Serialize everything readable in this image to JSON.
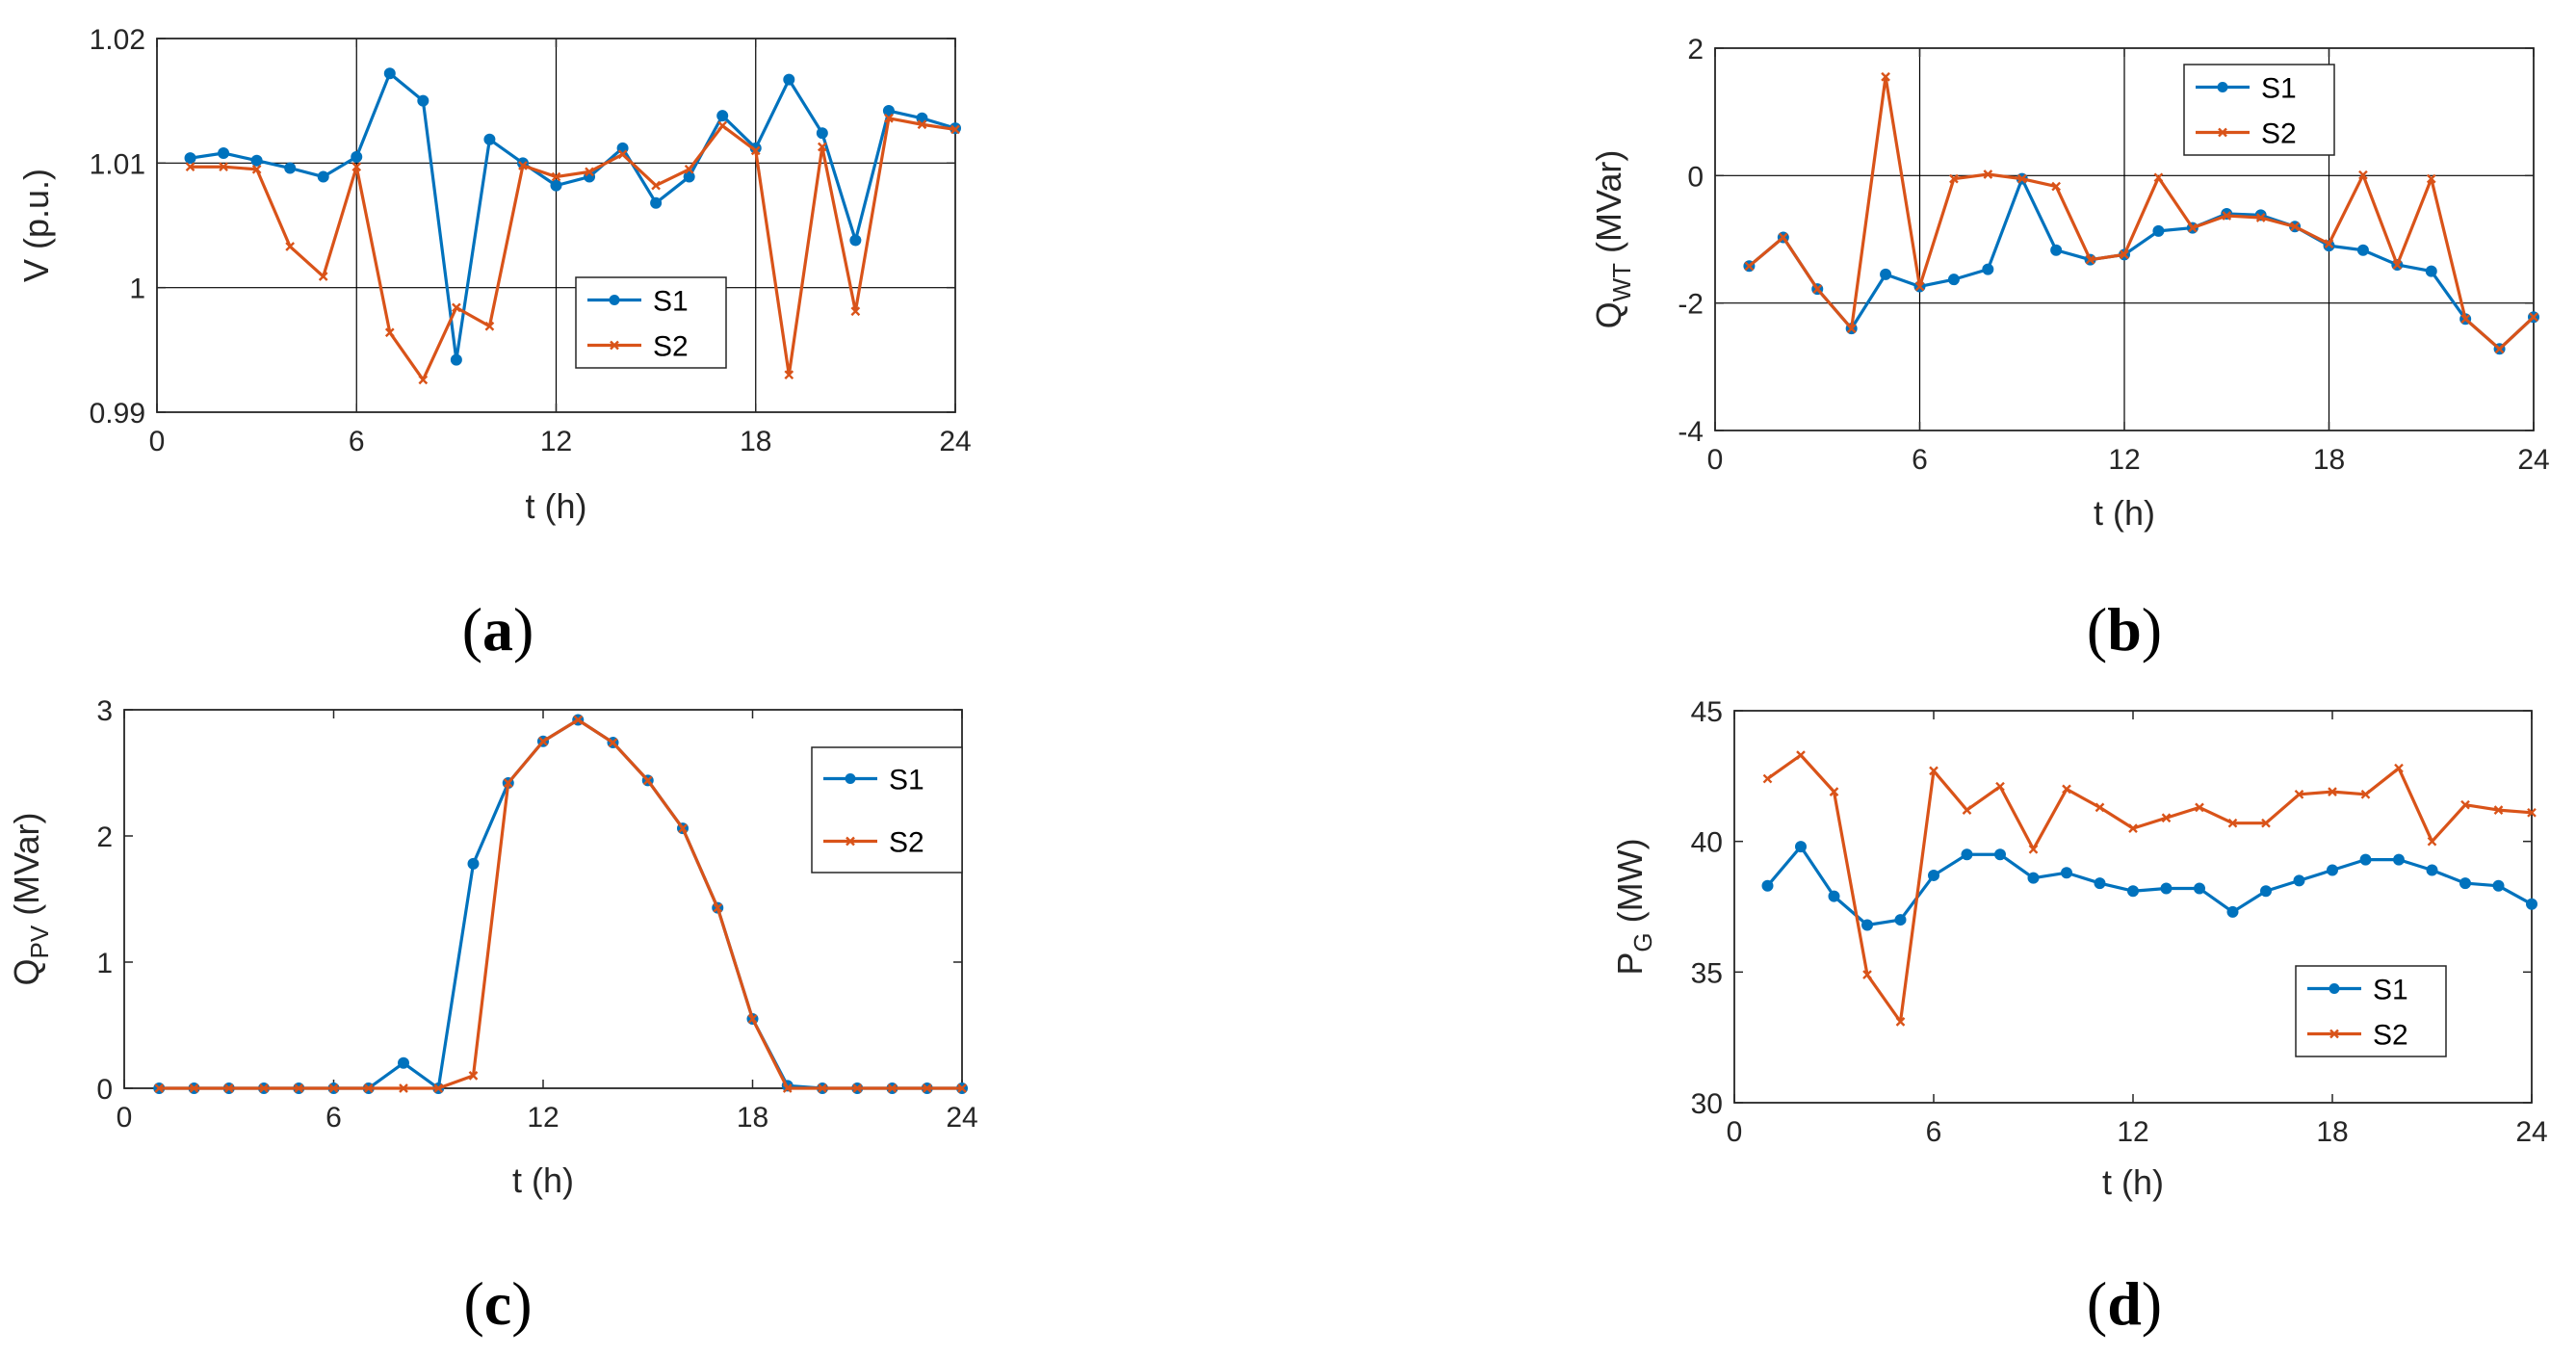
{
  "chart_data": [
    {
      "panel": "(a)",
      "panel_letter": "a",
      "type": "line",
      "xlabel": "t (h)",
      "ylabel": "V (p.u.)",
      "xlim": [
        0,
        24
      ],
      "ylim": [
        0.99,
        1.02
      ],
      "xticks": [
        0,
        6,
        12,
        18,
        24
      ],
      "yticks": [
        0.99,
        1,
        1.01,
        1.02
      ],
      "ytick_labels": [
        "0.99",
        "1",
        "1.01",
        "1.02"
      ],
      "grid": "major lines at x=6,12,18 and y=1,1.01",
      "legend_position": "center",
      "x": [
        1,
        2,
        3,
        4,
        5,
        6,
        7,
        8,
        9,
        10,
        11,
        12,
        13,
        14,
        15,
        16,
        17,
        18,
        19,
        20,
        21,
        22,
        23,
        24
      ],
      "series": [
        {
          "name": "S1",
          "color": "#0072BD",
          "marker": "circle",
          "values": [
            1.0104,
            1.0108,
            1.0102,
            1.0096,
            1.0089,
            1.0105,
            1.0172,
            1.015,
            0.9942,
            1.0119,
            1.01,
            1.0082,
            1.0089,
            1.0112,
            1.0068,
            1.0089,
            1.0138,
            1.0112,
            1.0167,
            1.0124,
            1.0038,
            1.0142,
            1.0136,
            1.0128
          ]
        },
        {
          "name": "S2",
          "color": "#D95319",
          "marker": "x",
          "values": [
            1.0097,
            1.0097,
            1.0095,
            1.0033,
            1.0009,
            1.0097,
            0.9964,
            0.9926,
            0.9984,
            0.9969,
            1.0098,
            1.0089,
            1.0093,
            1.0107,
            1.0082,
            1.0095,
            1.013,
            1.011,
            0.993,
            1.0113,
            0.9981,
            1.0136,
            1.0131,
            1.0127
          ]
        }
      ]
    },
    {
      "panel": "(b)",
      "panel_letter": "b",
      "type": "line",
      "xlabel": "t (h)",
      "ylabel": "Q",
      "ylabel_sub": "WT",
      "ylabel_unit": " (MVar)",
      "xlim": [
        0,
        24
      ],
      "ylim": [
        -4,
        2
      ],
      "xticks": [
        0,
        6,
        12,
        18,
        24
      ],
      "yticks": [
        -4,
        -2,
        0,
        2
      ],
      "ytick_labels": [
        "-4",
        "-2",
        "0",
        "2"
      ],
      "grid": "major lines at x=6,12,18 and y=-2,0",
      "legend_position": "top",
      "x": [
        1,
        2,
        3,
        4,
        5,
        6,
        7,
        8,
        9,
        10,
        11,
        12,
        13,
        14,
        15,
        16,
        17,
        18,
        19,
        20,
        21,
        22,
        23,
        24
      ],
      "series": [
        {
          "name": "S1",
          "color": "#0072BD",
          "marker": "circle",
          "values": [
            -1.42,
            -0.97,
            -1.78,
            -2.4,
            -1.55,
            -1.74,
            -1.63,
            -1.47,
            -0.05,
            -1.17,
            -1.32,
            -1.24,
            -0.87,
            -0.82,
            -0.6,
            -0.62,
            -0.8,
            -1.1,
            -1.17,
            -1.4,
            -1.5,
            -2.25,
            -2.72,
            -2.22
          ]
        },
        {
          "name": "S2",
          "color": "#D95319",
          "marker": "x",
          "values": [
            -1.42,
            -0.97,
            -1.78,
            -2.4,
            1.55,
            -1.74,
            -0.05,
            0.02,
            -0.05,
            -0.17,
            -1.32,
            -1.24,
            -0.03,
            -0.82,
            -0.63,
            -0.66,
            -0.8,
            -1.07,
            0.01,
            -1.4,
            -0.05,
            -2.25,
            -2.72,
            -2.22
          ]
        }
      ]
    },
    {
      "panel": "(c)",
      "panel_letter": "c",
      "type": "line",
      "xlabel": "t (h)",
      "ylabel": "Q",
      "ylabel_sub": "PV",
      "ylabel_unit": " (MVar)",
      "xlim": [
        0,
        24
      ],
      "ylim": [
        0,
        3
      ],
      "xticks": [
        0,
        6,
        12,
        18,
        24
      ],
      "yticks": [
        0,
        1,
        2,
        3
      ],
      "ytick_labels": [
        "0",
        "1",
        "2",
        "3"
      ],
      "grid": "off",
      "legend_position": "top-right",
      "x": [
        1,
        2,
        3,
        4,
        5,
        6,
        7,
        8,
        9,
        10,
        11,
        12,
        13,
        14,
        15,
        16,
        17,
        18,
        19,
        20,
        21,
        22,
        23,
        24
      ],
      "series": [
        {
          "name": "S1",
          "color": "#0072BD",
          "marker": "circle",
          "values": [
            0,
            0,
            0,
            0,
            0,
            0,
            0,
            0.2,
            0,
            1.78,
            2.42,
            2.75,
            2.92,
            2.74,
            2.44,
            2.06,
            1.43,
            0.55,
            0.02,
            0,
            0,
            0,
            0,
            0
          ]
        },
        {
          "name": "S2",
          "color": "#D95319",
          "marker": "x",
          "values": [
            0,
            0,
            0,
            0,
            0,
            0,
            0,
            0,
            0,
            0.1,
            2.42,
            2.75,
            2.92,
            2.74,
            2.44,
            2.06,
            1.43,
            0.55,
            0,
            0,
            0,
            0,
            0,
            0
          ]
        }
      ]
    },
    {
      "panel": "(d)",
      "panel_letter": "d",
      "type": "line",
      "xlabel": "t (h)",
      "ylabel": "P",
      "ylabel_sub": "G",
      "ylabel_unit": " (MW)",
      "xlim": [
        0,
        24
      ],
      "ylim": [
        30,
        45
      ],
      "xticks": [
        0,
        6,
        12,
        18,
        24
      ],
      "yticks": [
        30,
        35,
        40,
        45
      ],
      "ytick_labels": [
        "30",
        "35",
        "40",
        "45"
      ],
      "grid": "off",
      "legend_position": "bottom-right",
      "x": [
        1,
        2,
        3,
        4,
        5,
        6,
        7,
        8,
        9,
        10,
        11,
        12,
        13,
        14,
        15,
        16,
        17,
        18,
        19,
        20,
        21,
        22,
        23,
        24
      ],
      "series": [
        {
          "name": "S1",
          "color": "#0072BD",
          "marker": "circle",
          "values": [
            38.3,
            39.8,
            37.9,
            36.8,
            37.0,
            38.7,
            39.5,
            39.5,
            38.6,
            38.8,
            38.4,
            38.1,
            38.2,
            38.2,
            37.3,
            38.1,
            38.5,
            38.9,
            39.3,
            39.3,
            38.9,
            38.4,
            38.3,
            37.6
          ]
        },
        {
          "name": "S2",
          "color": "#D95319",
          "marker": "x",
          "values": [
            42.4,
            43.3,
            41.9,
            34.9,
            33.1,
            42.7,
            41.2,
            42.1,
            39.7,
            42.0,
            41.3,
            40.5,
            40.9,
            41.3,
            40.7,
            40.7,
            41.8,
            41.9,
            41.8,
            42.8,
            40.0,
            41.4,
            41.2,
            41.1
          ]
        }
      ]
    }
  ]
}
